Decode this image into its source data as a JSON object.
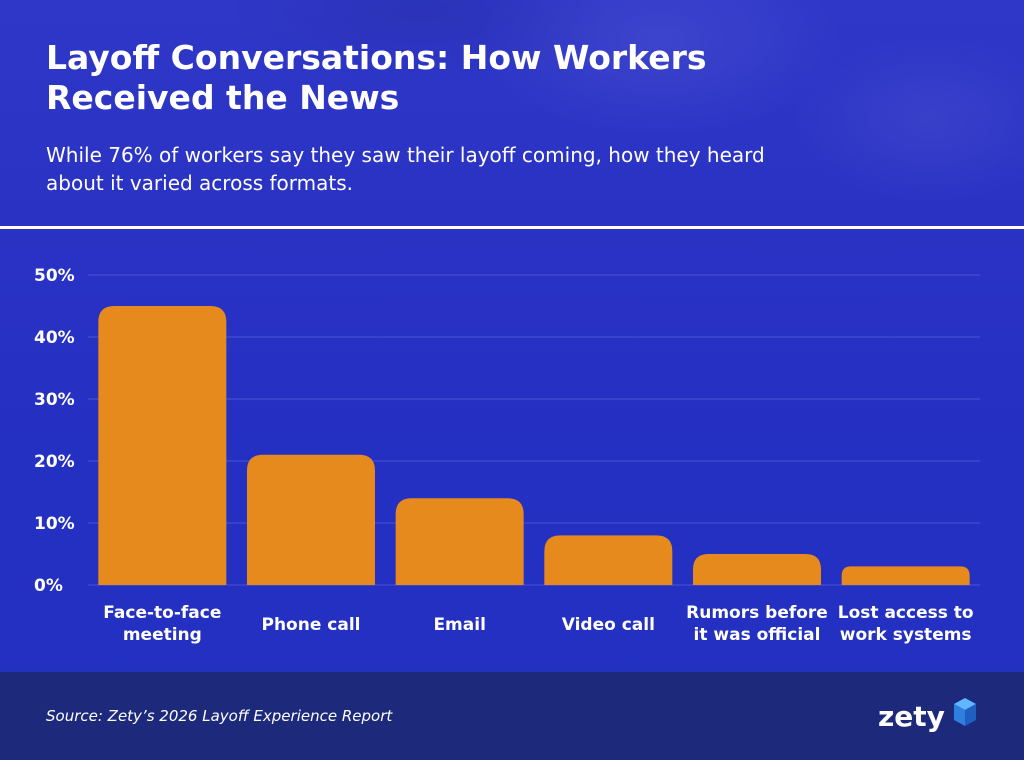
{
  "header": {
    "title": "Layoff Conversations: How Workers Received the News",
    "subtitle": "While 76% of workers say they saw their layoff coming, how they heard about it varied across formats."
  },
  "footer": {
    "source": "Source: Zety’s 2026 Layoff Experience Report",
    "logo_text": "zety"
  },
  "colors": {
    "bar": "#e68a1e",
    "background": "#2a32c4",
    "footer": "#1d2a7c",
    "gridline": "#4a55d6"
  },
  "chart_data": {
    "type": "bar",
    "categories": [
      [
        "Face-to-face",
        "meeting"
      ],
      [
        "Phone call"
      ],
      [
        "Email"
      ],
      [
        "Video call"
      ],
      [
        "Rumors before",
        "it was official"
      ],
      [
        "Lost access to",
        "work systems"
      ]
    ],
    "values": [
      45,
      21,
      14,
      8,
      5,
      3
    ],
    "ylim": [
      0,
      50
    ],
    "yticks": [
      0,
      10,
      20,
      30,
      40,
      50
    ],
    "ytick_labels": [
      "0%",
      "10%",
      "20%",
      "30%",
      "40%",
      "50%"
    ],
    "grid": true
  }
}
